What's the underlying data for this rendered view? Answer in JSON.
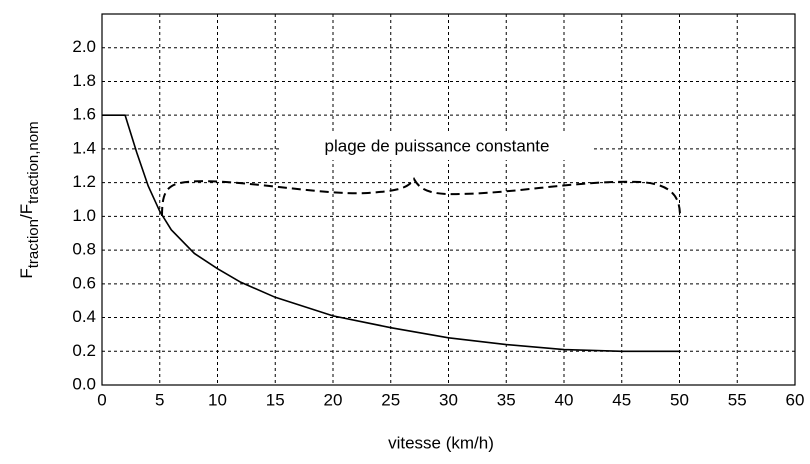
{
  "chart_data": {
    "type": "line",
    "xlabel": "vitesse (km/h)",
    "ylabel": [
      "F",
      "traction",
      "/F",
      "traction,nom"
    ],
    "annotation": "plage de puissance constante",
    "x": [
      0,
      2,
      3,
      4,
      5,
      6,
      8,
      10,
      12,
      15,
      20,
      25,
      30,
      35,
      40,
      45,
      50
    ],
    "series": [
      {
        "name": null,
        "color": "#000000",
        "values": [
          1.6,
          1.6,
          1.38,
          1.18,
          1.03,
          0.92,
          0.78,
          0.69,
          0.61,
          0.52,
          0.41,
          0.34,
          0.28,
          0.24,
          0.21,
          0.2,
          0.2
        ]
      }
    ],
    "xlim": [
      0,
      60
    ],
    "xticks": [
      0,
      5,
      10,
      15,
      20,
      25,
      30,
      35,
      40,
      45,
      50,
      55,
      60
    ],
    "ylim": [
      0,
      2.2
    ],
    "yticks": [
      {
        "value": 0,
        "label": "0.0"
      },
      0.2,
      0.4,
      0.6,
      0.8,
      {
        "value": 1,
        "label": "1.0"
      },
      1.2,
      1.4,
      1.6,
      1.8,
      {
        "value": 2,
        "label": "2.0"
      }
    ],
    "grid": true
  }
}
